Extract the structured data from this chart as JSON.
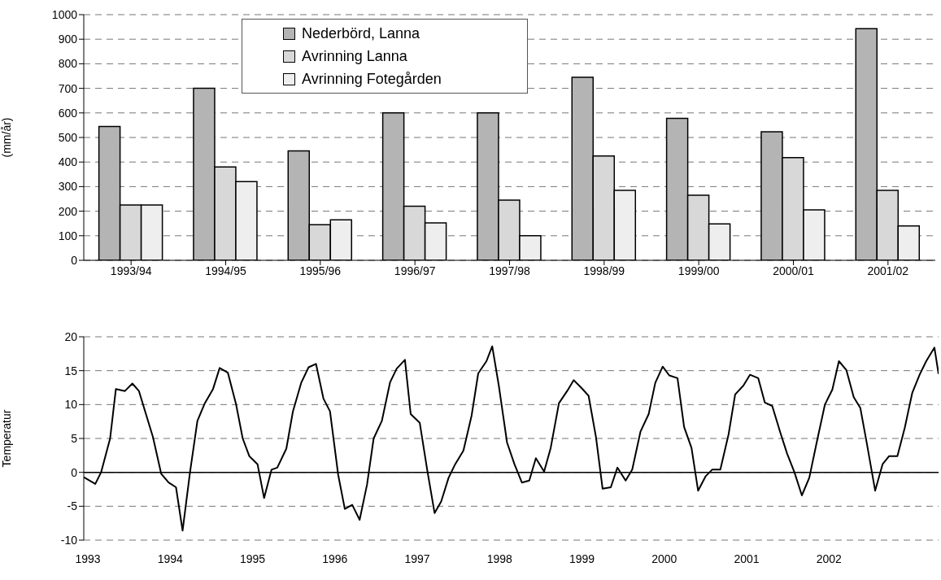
{
  "chart_data": [
    {
      "type": "bar",
      "ylabel": "(mm/år)",
      "categories": [
        "1993/94",
        "1994/95",
        "1995/96",
        "1996/97",
        "1997/98",
        "1998/99",
        "1999/00",
        "2000/01",
        "2001/02"
      ],
      "series": [
        {
          "name": "Nederbörd, Lanna",
          "color": "#b4b4b4",
          "values": [
            545,
            700,
            445,
            600,
            600,
            745,
            578,
            523,
            943
          ]
        },
        {
          "name": "Avrinning Lanna",
          "color": "#d8d8d8",
          "values": [
            225,
            380,
            145,
            220,
            245,
            425,
            265,
            418,
            285
          ]
        },
        {
          "name": "Avrinning Fotegården",
          "color": "#eeeeee",
          "values": [
            225,
            320,
            165,
            152,
            100,
            285,
            148,
            205,
            140
          ]
        }
      ],
      "ylim": [
        0,
        1000
      ],
      "yticks": [
        0,
        100,
        200,
        300,
        400,
        500,
        600,
        700,
        800,
        900,
        1000
      ],
      "grid": "y",
      "legend": "top"
    },
    {
      "type": "line",
      "ylabel": "Temperatur",
      "x": [
        1992.95,
        1993.09,
        1993.16,
        1993.27,
        1993.34,
        1993.45,
        1993.54,
        1993.62,
        1993.79,
        1993.89,
        1993.98,
        1994.07,
        1994.15,
        1994.24,
        1994.33,
        1994.42,
        1994.52,
        1994.6,
        1994.7,
        1994.8,
        1994.88,
        1994.96,
        1995.06,
        1995.14,
        1995.23,
        1995.3,
        1995.41,
        1995.49,
        1995.59,
        1995.68,
        1995.77,
        1995.86,
        1995.94,
        1996.04,
        1996.12,
        1996.21,
        1996.3,
        1996.39,
        1996.47,
        1996.57,
        1996.67,
        1996.75,
        1996.85,
        1996.92,
        1997.03,
        1997.12,
        1997.21,
        1997.29,
        1997.38,
        1997.46,
        1997.56,
        1997.66,
        1997.74,
        1997.84,
        1997.91,
        1997.99,
        1998.09,
        1998.18,
        1998.27,
        1998.36,
        1998.44,
        1998.54,
        1998.62,
        1998.72,
        1998.82,
        1998.9,
        1998.99,
        1999.08,
        1999.17,
        1999.25,
        1999.35,
        1999.43,
        1999.53,
        1999.61,
        1999.71,
        1999.81,
        1999.89,
        1999.98,
        2000.06,
        2000.16,
        2000.24,
        2000.33,
        2000.41,
        2000.5,
        2000.58,
        2000.68,
        2000.78,
        2000.86,
        2000.96,
        2001.04,
        2001.14,
        2001.22,
        2001.31,
        2001.41,
        2001.49,
        2001.58,
        2001.67,
        2001.76,
        2001.85,
        2001.95,
        2002.04,
        2002.12,
        2002.21,
        2002.3,
        2002.38,
        2002.46,
        2002.56,
        2002.65,
        2002.73,
        2002.83,
        2002.92,
        2003.01,
        2003.1,
        2003.18,
        2003.28,
        2003.33
      ],
      "values": [
        -0.7,
        -1.7,
        0,
        5,
        12.3,
        12,
        13.1,
        12,
        5.2,
        -0.2,
        -1.5,
        -2.2,
        -8.6,
        0,
        7.6,
        10.2,
        12.3,
        15.4,
        14.7,
        10,
        5,
        2.4,
        1.2,
        -3.8,
        0.4,
        0.7,
        3.5,
        9,
        13.2,
        15.5,
        16,
        10.9,
        9,
        -0.4,
        -5.4,
        -4.8,
        -7,
        -1.8,
        5,
        7.6,
        13.3,
        15.3,
        16.6,
        8.6,
        7.3,
        0.4,
        -6,
        -4.3,
        -0.8,
        1.2,
        3.2,
        8.4,
        14.6,
        16.4,
        18.6,
        12.8,
        4.4,
        1.2,
        -1.5,
        -1.2,
        2.1,
        0.1,
        3.6,
        10.2,
        12,
        13.6,
        12.5,
        11.3,
        5.2,
        -2.4,
        -2.2,
        0.7,
        -1.2,
        0.4,
        6,
        8.6,
        13.2,
        15.6,
        14.3,
        13.9,
        6.7,
        3.6,
        -2.7,
        -0.6,
        0.4,
        0.4,
        5.6,
        11.5,
        12.8,
        14.4,
        13.9,
        10.3,
        9.8,
        5.8,
        2.8,
        0,
        -3.4,
        -0.8,
        4.4,
        10,
        12.2,
        16.4,
        15.1,
        11.1,
        9.5,
        4.2,
        -2.7,
        1.2,
        2.4,
        2.4,
        6.6,
        11.7,
        14.4,
        16.4,
        18.4,
        14.5
      ],
      "color": "#000000",
      "xlim": [
        1992.95,
        2003.33
      ],
      "xticks": [
        1993,
        1994,
        1995,
        1996,
        1997,
        1998,
        1999,
        2000,
        2001,
        2002
      ],
      "ylim": [
        -10,
        20
      ],
      "yticks": [
        -10,
        -5,
        0,
        5,
        10,
        15,
        20
      ],
      "grid": "y",
      "ref_lines": [
        {
          "axis": "y",
          "value": 0,
          "color": "#000000"
        }
      ]
    }
  ]
}
